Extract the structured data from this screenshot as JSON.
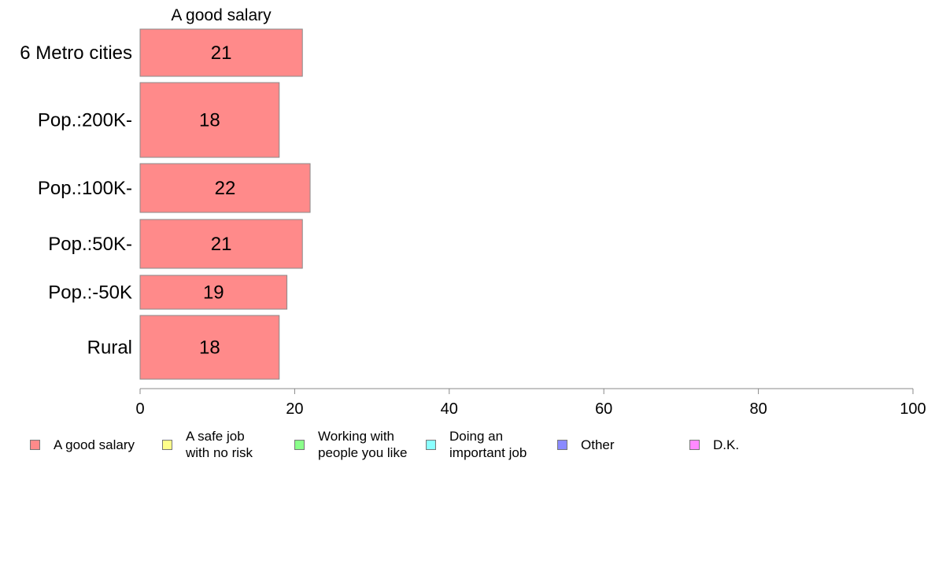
{
  "chart_data": {
    "type": "bar",
    "orientation": "horizontal",
    "title": "A good salary",
    "categories": [
      "6 Metro cities",
      "Pop.:200K-",
      "Pop.:100K-",
      "Pop.:50K-",
      "Pop.:-50K",
      "Rural"
    ],
    "series": [
      {
        "name": "A good salary",
        "values": [
          21,
          18,
          22,
          21,
          19,
          18
        ],
        "color": "#ff8a8a"
      }
    ],
    "data_labels": [
      "21",
      "18",
      "22",
      "21",
      "19",
      "18"
    ],
    "xlim": [
      0,
      100
    ],
    "xticks": [
      "0",
      "20",
      "40",
      "60",
      "80",
      "100"
    ],
    "xlabel": "",
    "ylabel": "",
    "grid": false,
    "legend_position": "bottom",
    "legend": [
      {
        "label": "A good salary",
        "color": "#ff8a8a"
      },
      {
        "label": "A safe job\nwith no risk",
        "color": "#ffff8a"
      },
      {
        "label": "Working with\npeople you like",
        "color": "#8aff8a"
      },
      {
        "label": "Doing an\nimportant job",
        "color": "#8affff"
      },
      {
        "label": "Other",
        "color": "#8a8aff"
      },
      {
        "label": "D.K.",
        "color": "#ff8aff"
      }
    ]
  }
}
